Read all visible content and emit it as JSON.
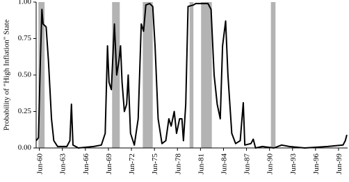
{
  "chart_data": {
    "type": "line",
    "y_label": "Probability of \"High Inflation\" State",
    "x": [
      1960.0,
      1960.3,
      1960.55,
      1960.75,
      1960.9,
      1961.3,
      1961.6,
      1962.0,
      1962.3,
      1962.8,
      1964.0,
      1964.4,
      1964.6,
      1964.8,
      1965.5,
      1967.5,
      1968.5,
      1969.0,
      1969.3,
      1969.5,
      1969.8,
      1970.2,
      1970.5,
      1970.8,
      1971.0,
      1971.2,
      1971.5,
      1971.8,
      1972.0,
      1972.3,
      1972.8,
      1973.3,
      1973.7,
      1974.0,
      1974.3,
      1974.8,
      1975.2,
      1975.5,
      1975.9,
      1976.4,
      1976.9,
      1977.3,
      1977.6,
      1978.0,
      1978.3,
      1978.7,
      1979.0,
      1979.2,
      1979.5,
      1979.8,
      1980.5,
      1980.8,
      1981.5,
      1982.4,
      1982.8,
      1983.2,
      1983.6,
      1984.0,
      1984.3,
      1984.7,
      1985.0,
      1985.5,
      1986.0,
      1986.6,
      1987.0,
      1987.2,
      1988.0,
      1988.3,
      1988.6,
      1989.5,
      1991.0,
      1992.0,
      1993.0,
      1995.0,
      1998.0,
      2000.0,
      2000.3,
      2000.5
    ],
    "series": [
      {
        "color": "#000000",
        "values": [
          0.05,
          0.07,
          0.6,
          0.95,
          0.85,
          0.83,
          0.6,
          0.2,
          0.05,
          0.01,
          0.01,
          0.05,
          0.3,
          0.02,
          0.0,
          0.01,
          0.02,
          0.1,
          0.7,
          0.45,
          0.4,
          0.85,
          0.5,
          0.6,
          0.7,
          0.45,
          0.25,
          0.3,
          0.5,
          0.1,
          0.02,
          0.2,
          0.85,
          0.8,
          0.98,
          0.99,
          0.97,
          0.7,
          0.2,
          0.03,
          0.05,
          0.2,
          0.15,
          0.25,
          0.1,
          0.2,
          0.2,
          0.05,
          0.3,
          0.97,
          0.98,
          0.99,
          0.99,
          0.99,
          0.95,
          0.5,
          0.3,
          0.2,
          0.7,
          0.87,
          0.5,
          0.1,
          0.03,
          0.05,
          0.31,
          0.02,
          0.03,
          0.06,
          0.0,
          0.01,
          0.0,
          0.02,
          0.01,
          0.0,
          0.01,
          0.02,
          0.05,
          0.09
        ]
      }
    ],
    "shaded": [
      [
        1960.3,
        1961.1
      ],
      [
        1969.9,
        1970.9
      ],
      [
        1973.9,
        1975.2
      ],
      [
        1980.0,
        1980.5
      ],
      [
        1981.5,
        1982.9
      ],
      [
        1990.6,
        1991.2
      ]
    ],
    "shade_color": "#b3b3b3",
    "xlim": [
      1960.0,
      2000.6
    ],
    "xticks": [
      {
        "value": 1960.42,
        "label": "Jun-60"
      },
      {
        "value": 1963.42,
        "label": "Jun-63"
      },
      {
        "value": 1966.42,
        "label": "Jun-66"
      },
      {
        "value": 1969.42,
        "label": "Jun-69"
      },
      {
        "value": 1972.42,
        "label": "Jun-72"
      },
      {
        "value": 1975.42,
        "label": "Jun-75"
      },
      {
        "value": 1978.42,
        "label": "Jun-78"
      },
      {
        "value": 1981.42,
        "label": "Jun-81"
      },
      {
        "value": 1984.42,
        "label": "Jun-84"
      },
      {
        "value": 1987.42,
        "label": "Jun-87"
      },
      {
        "value": 1990.42,
        "label": "Jun-90"
      },
      {
        "value": 1993.42,
        "label": "Jun-93"
      },
      {
        "value": 1996.42,
        "label": "Jun-96"
      },
      {
        "value": 1999.42,
        "label": "Jun-99"
      }
    ],
    "ylim": [
      0,
      1
    ],
    "yticks": [
      {
        "value": 0,
        "label": "0.00"
      },
      {
        "value": 0.25,
        "label": "0.25"
      },
      {
        "value": 0.5,
        "label": "0.50"
      },
      {
        "value": 0.75,
        "label": "0.75"
      },
      {
        "value": 1,
        "label": "1.00"
      }
    ]
  }
}
